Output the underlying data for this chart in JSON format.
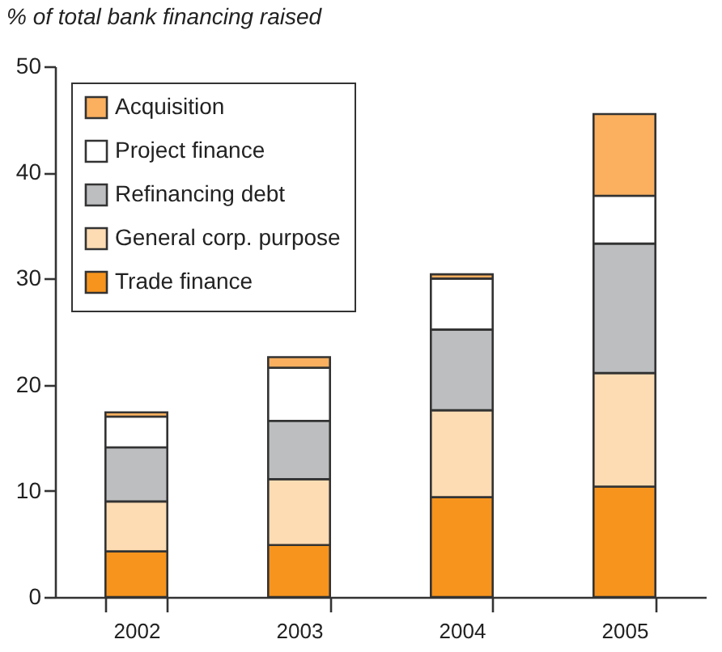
{
  "chart_data": {
    "type": "bar",
    "title": "% of total bank financing raised",
    "categories": [
      "2002",
      "2003",
      "2004",
      "2005"
    ],
    "stacked": true,
    "ylim": [
      0,
      50
    ],
    "yticks": [
      0,
      10,
      20,
      30,
      40,
      50
    ],
    "grid": false,
    "legend": "top left",
    "series": [
      {
        "name": "Trade finance",
        "color": "#f7941d",
        "values": [
          4.3,
          4.9,
          9.4,
          10.4
        ]
      },
      {
        "name": "General corp. purpose",
        "color": "#fddcb3",
        "values": [
          4.7,
          6.2,
          8.2,
          10.7
        ]
      },
      {
        "name": "Refinancing debt",
        "color": "#bcbec0",
        "values": [
          5.1,
          5.5,
          7.6,
          12.2
        ]
      },
      {
        "name": "Project finance",
        "color": "#ffffff",
        "values": [
          2.9,
          5.0,
          4.8,
          4.5
        ]
      },
      {
        "name": "Acquisition",
        "color": "#fbb05f",
        "values": [
          0.4,
          1.0,
          0.4,
          7.7
        ]
      }
    ]
  }
}
